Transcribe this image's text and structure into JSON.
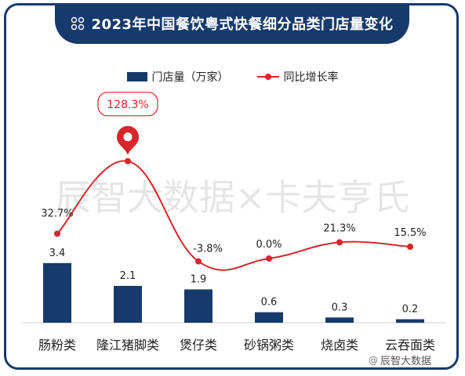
{
  "header": {
    "title": "2023年中国餐饮粤式快餐细分品类门店量变化"
  },
  "legend": {
    "bar_label": "门店量（万家）",
    "line_label": "同比增长率"
  },
  "watermark": "辰智大数据×卡夫亨氏",
  "footer": {
    "at": "@",
    "text": "辰智大数据"
  },
  "colors": {
    "bar": "#163a6b",
    "line": "#d7262a",
    "frame": "#163a6b"
  },
  "chart_data": {
    "type": "bar",
    "categories": [
      "肠粉类",
      "隆江猪脚类",
      "煲仔类",
      "砂锅粥类",
      "烧卤类",
      "云吞面类"
    ],
    "series": [
      {
        "name": "门店量（万家）",
        "type": "bar",
        "values": [
          3.4,
          2.1,
          1.9,
          0.6,
          0.3,
          0.2
        ],
        "labels": [
          "3.4",
          "2.1",
          "1.9",
          "0.6",
          "0.3",
          "0.2"
        ]
      },
      {
        "name": "同比增长率",
        "type": "line",
        "values": [
          32.7,
          128.3,
          -3.8,
          0.0,
          21.3,
          15.5
        ],
        "labels": [
          "32.7%",
          "128.3%",
          "-3.8%",
          "0.0%",
          "21.3%",
          "15.5%"
        ]
      }
    ],
    "highlight": {
      "category": "隆江猪脚类",
      "label": "128.3%"
    }
  }
}
